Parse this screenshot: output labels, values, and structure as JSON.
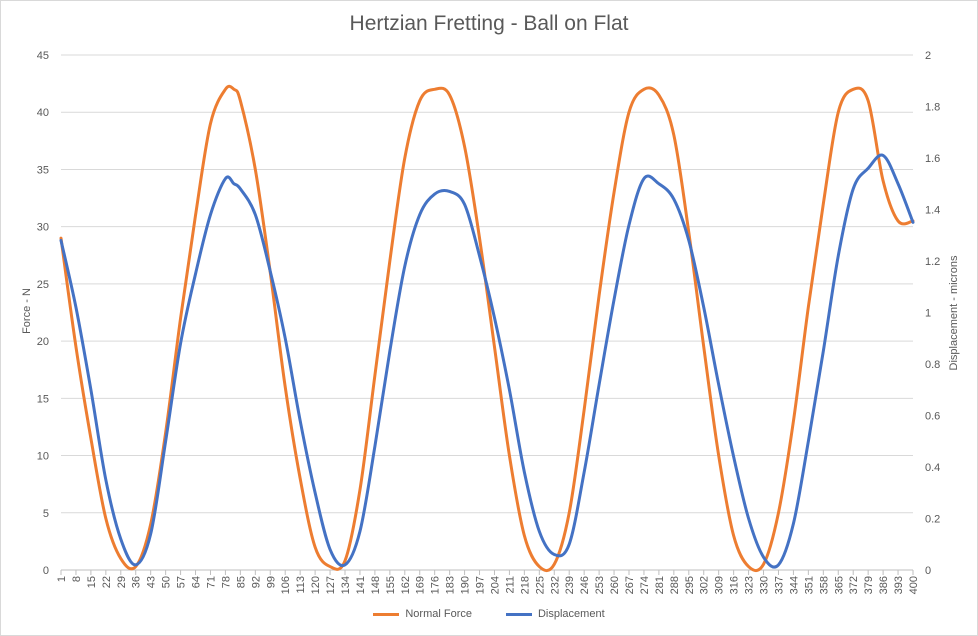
{
  "chart_data": {
    "type": "line",
    "title": "Hertzian Fretting - Ball on Flat",
    "ylabel": "Force - N",
    "y2label": "Displacement - microns",
    "x_range": [
      1,
      400
    ],
    "ylim": [
      0,
      45
    ],
    "y2lim": [
      0,
      2
    ],
    "y_ticks": [
      "0",
      "5",
      "10",
      "15",
      "20",
      "25",
      "30",
      "35",
      "40",
      "45"
    ],
    "y2_ticks": [
      "0",
      "0.2",
      "0.4",
      "0.6",
      "0.8",
      "1",
      "1.2",
      "1.4",
      "1.6",
      "1.8",
      "2"
    ],
    "x_ticks": [
      "1",
      "8",
      "15",
      "22",
      "29",
      "36",
      "43",
      "50",
      "57",
      "64",
      "71",
      "78",
      "85",
      "92",
      "99",
      "106",
      "113",
      "120",
      "127",
      "134",
      "141",
      "148",
      "155",
      "162",
      "169",
      "176",
      "183",
      "190",
      "197",
      "204",
      "211",
      "218",
      "225",
      "232",
      "239",
      "246",
      "253",
      "260",
      "267",
      "274",
      "281",
      "288",
      "295",
      "302",
      "309",
      "316",
      "323",
      "330",
      "337",
      "344",
      "351",
      "358",
      "365",
      "372",
      "379",
      "386",
      "393",
      "400"
    ],
    "grid": "horizontal",
    "legend": "bottom",
    "series": [
      {
        "name": "Normal Force",
        "axis": "left",
        "color": "#ED7D31",
        "x": [
          1,
          8,
          15,
          22,
          29,
          36,
          43,
          50,
          57,
          64,
          71,
          78,
          82,
          85,
          92,
          99,
          106,
          113,
          120,
          127,
          134,
          141,
          148,
          155,
          162,
          169,
          176,
          183,
          190,
          197,
          204,
          211,
          218,
          225,
          232,
          239,
          246,
          253,
          260,
          267,
          274,
          281,
          288,
          295,
          302,
          309,
          316,
          323,
          330,
          337,
          344,
          351,
          358,
          365,
          372,
          379,
          386,
          393,
          400
        ],
        "values": [
          29,
          19.5,
          11.5,
          4.5,
          1,
          0.3,
          4,
          12,
          22,
          31,
          39,
          42,
          42,
          41,
          35,
          26,
          16,
          8,
          2,
          0.3,
          0.8,
          7,
          17,
          27,
          36,
          41,
          42,
          41.5,
          37,
          29,
          19.5,
          10,
          3,
          0.3,
          0.5,
          5,
          14,
          24,
          33,
          40,
          42,
          41.5,
          38,
          29.5,
          19.5,
          10,
          3,
          0.3,
          0.5,
          5,
          13,
          23,
          32,
          40,
          42,
          41,
          34,
          30.5,
          30.5
        ]
      },
      {
        "name": "Displacement",
        "axis": "right",
        "color": "#4472C4",
        "x": [
          1,
          8,
          15,
          22,
          29,
          36,
          43,
          50,
          57,
          64,
          71,
          78,
          82,
          85,
          92,
          99,
          106,
          113,
          120,
          127,
          134,
          141,
          148,
          155,
          162,
          169,
          176,
          183,
          190,
          197,
          204,
          211,
          218,
          225,
          232,
          239,
          246,
          253,
          260,
          267,
          274,
          281,
          288,
          295,
          302,
          309,
          316,
          323,
          330,
          337,
          344,
          351,
          358,
          365,
          372,
          379,
          386,
          393,
          400
        ],
        "values": [
          1.28,
          1.02,
          0.7,
          0.35,
          0.12,
          0.02,
          0.14,
          0.5,
          0.88,
          1.15,
          1.38,
          1.52,
          1.5,
          1.48,
          1.38,
          1.16,
          0.9,
          0.58,
          0.3,
          0.08,
          0.02,
          0.15,
          0.48,
          0.85,
          1.18,
          1.38,
          1.46,
          1.47,
          1.42,
          1.22,
          0.98,
          0.7,
          0.38,
          0.15,
          0.06,
          0.1,
          0.38,
          0.72,
          1.05,
          1.34,
          1.52,
          1.5,
          1.44,
          1.28,
          1.02,
          0.72,
          0.44,
          0.2,
          0.05,
          0.02,
          0.18,
          0.5,
          0.85,
          1.22,
          1.48,
          1.56,
          1.61,
          1.5,
          1.35
        ]
      }
    ]
  }
}
